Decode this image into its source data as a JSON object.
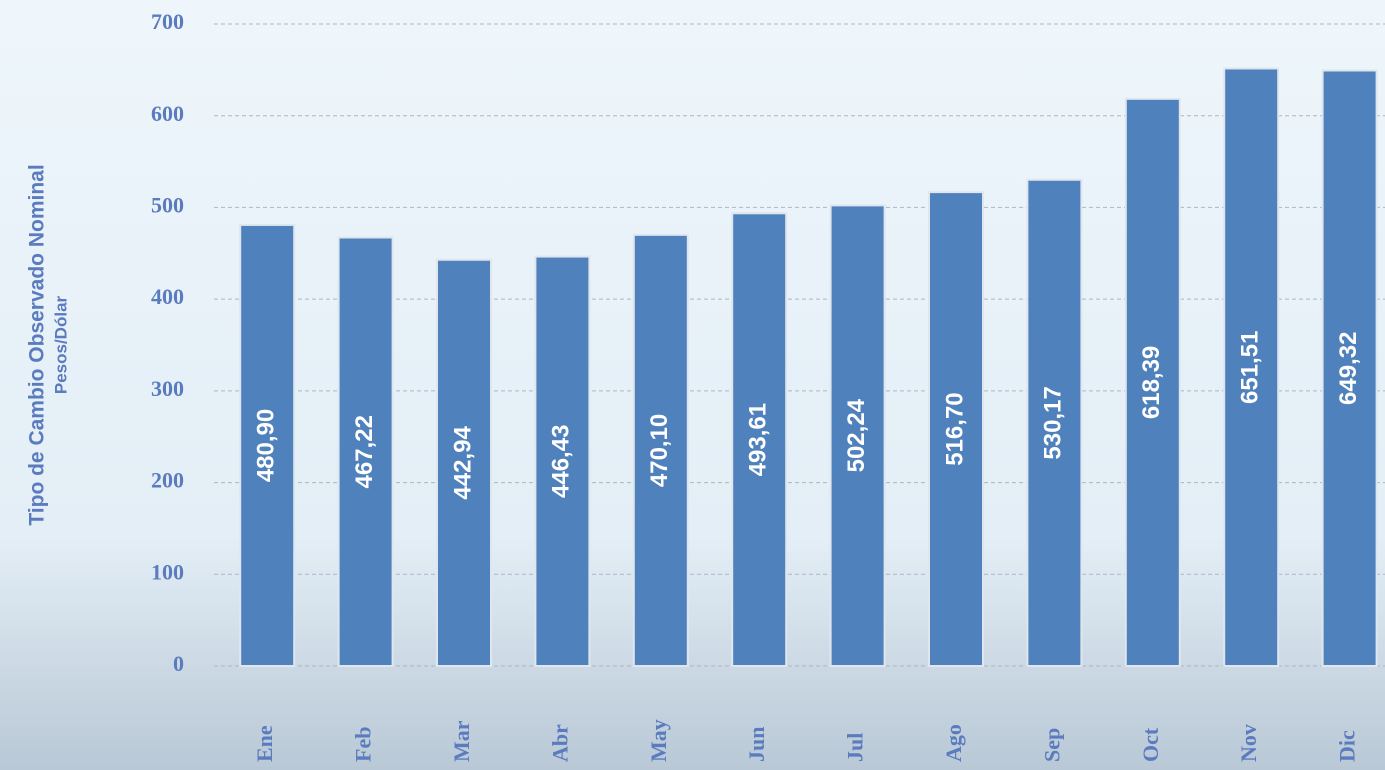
{
  "chart_data": {
    "type": "bar",
    "y_axis_label": "Tipo de Cambio Observado Nominal",
    "y_axis_sublabel": "Pesos/Dólar",
    "categories": [
      "Ene",
      "Feb",
      "Mar",
      "Abr",
      "May",
      "Jun",
      "Jul",
      "Ago",
      "Sep",
      "Oct",
      "Nov",
      "Dic"
    ],
    "values": [
      480.9,
      467.22,
      442.94,
      446.43,
      470.1,
      493.61,
      502.24,
      516.7,
      530.17,
      618.39,
      651.51,
      649.32
    ],
    "value_labels": [
      "480,90",
      "467,22",
      "442,94",
      "446,43",
      "470,10",
      "493,61",
      "502,24",
      "516,70",
      "530,17",
      "618,39",
      "651,51",
      "649,32"
    ],
    "color": "#4f81bd",
    "ylim": [
      0,
      700
    ],
    "yticks": [
      0,
      100,
      200,
      300,
      400,
      500,
      600,
      700
    ],
    "grid": true
  }
}
